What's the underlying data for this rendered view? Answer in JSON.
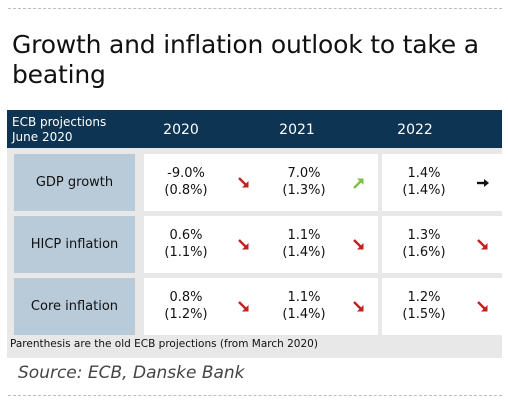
{
  "title": "Growth and inflation outlook to take a beating",
  "header": {
    "label_line1": "ECB projections",
    "label_line2": "June 2020",
    "years": [
      "2020",
      "2021",
      "2022"
    ]
  },
  "chart_data": {
    "type": "table",
    "columns": [
      "2020",
      "2021",
      "2022"
    ],
    "rows": [
      {
        "label": "GDP growth",
        "values": [
          "-9.0%",
          "7.0%",
          "1.4%"
        ],
        "previous": [
          "(0.8%)",
          "(1.3%)",
          "(1.4%)"
        ],
        "trend": [
          "down",
          "up",
          "flat"
        ]
      },
      {
        "label": "HICP inflation",
        "values": [
          "0.6%",
          "1.1%",
          "1.3%"
        ],
        "previous": [
          "(1.1%)",
          "(1.4%)",
          "(1.6%)"
        ],
        "trend": [
          "down",
          "down",
          "down"
        ]
      },
      {
        "label": "Core inflation",
        "values": [
          "0.8%",
          "1.1%",
          "1.2%"
        ],
        "previous": [
          "(1.2%)",
          "(1.4%)",
          "(1.5%)"
        ],
        "trend": [
          "down",
          "down",
          "down"
        ]
      }
    ]
  },
  "note": "Parenthesis are the old ECB projections (from March 2020)",
  "source": "Source: ECB, Danske Bank",
  "colors": {
    "header_bg": "#0d3452",
    "row_label_bg": "#b9cad9",
    "arrow_down": "#c0201f",
    "arrow_up": "#7cc242",
    "arrow_flat": "#111111"
  }
}
